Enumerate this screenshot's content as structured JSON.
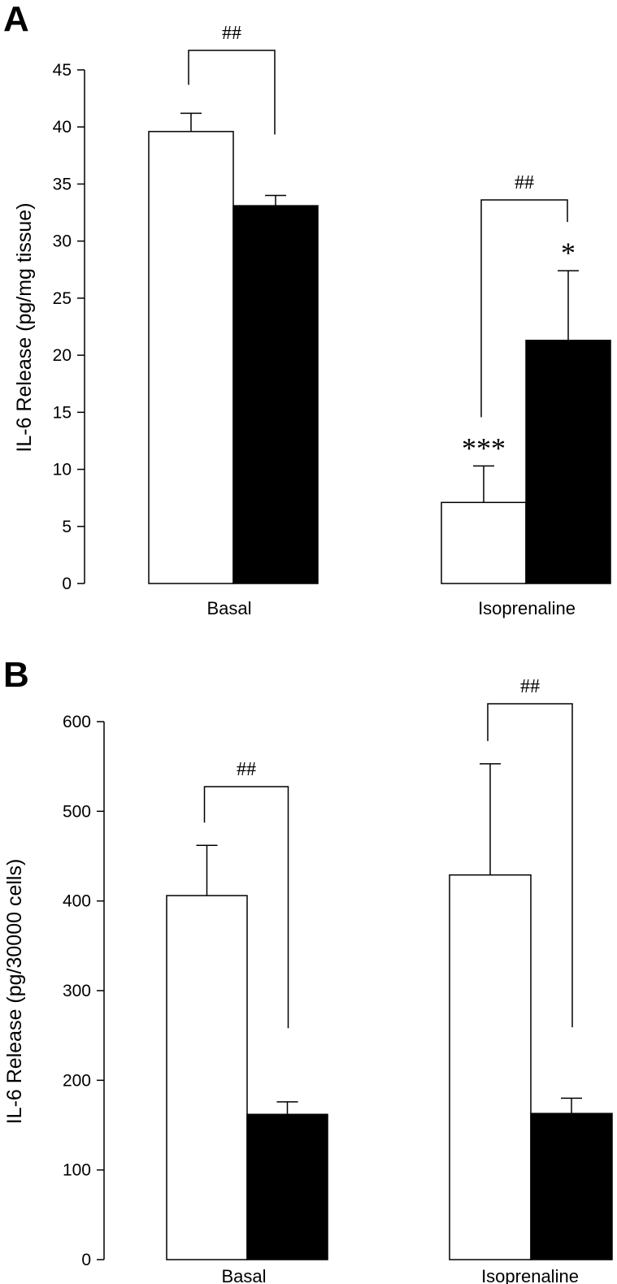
{
  "chart_data": [
    {
      "panel": "A",
      "type": "bar",
      "categories": [
        "Basal",
        "Isoprenaline"
      ],
      "ylabel": "IL-6 Release (pg/mg tissue)",
      "xlabel": "",
      "ylim": [
        0,
        45
      ],
      "yticks": [
        0,
        5,
        10,
        15,
        20,
        25,
        30,
        35,
        40,
        45
      ],
      "series": [
        {
          "name": "open",
          "color": "#ffffff",
          "values": [
            39.6,
            7.1
          ],
          "errors": [
            1.6,
            3.2
          ]
        },
        {
          "name": "filled",
          "color": "#000000",
          "values": [
            33.1,
            21.3
          ],
          "errors": [
            0.9,
            6.1
          ]
        }
      ],
      "annotations": [
        {
          "label": "##",
          "category": 0,
          "from_series": 0,
          "to_series": 1
        },
        {
          "label": "##",
          "category": 1,
          "from_series": 0,
          "to_series": 1
        },
        {
          "label": "***",
          "category": 1,
          "series": 0
        },
        {
          "label": "*",
          "category": 1,
          "series": 1
        }
      ]
    },
    {
      "panel": "B",
      "type": "bar",
      "categories": [
        "Basal",
        "Isoprenaline"
      ],
      "ylabel": "IL-6 Release (pg/30000 cells)",
      "xlabel": "",
      "ylim": [
        0,
        600
      ],
      "yticks": [
        0,
        100,
        200,
        300,
        400,
        500,
        600
      ],
      "series": [
        {
          "name": "open",
          "color": "#ffffff",
          "values": [
            406,
            429
          ],
          "errors": [
            56,
            124
          ]
        },
        {
          "name": "filled",
          "color": "#000000",
          "values": [
            162,
            163
          ],
          "errors": [
            14,
            17
          ]
        }
      ],
      "annotations": [
        {
          "label": "##",
          "category": 0,
          "from_series": 0,
          "to_series": 1
        },
        {
          "label": "##",
          "category": 1,
          "from_series": 0,
          "to_series": 1
        }
      ]
    }
  ]
}
